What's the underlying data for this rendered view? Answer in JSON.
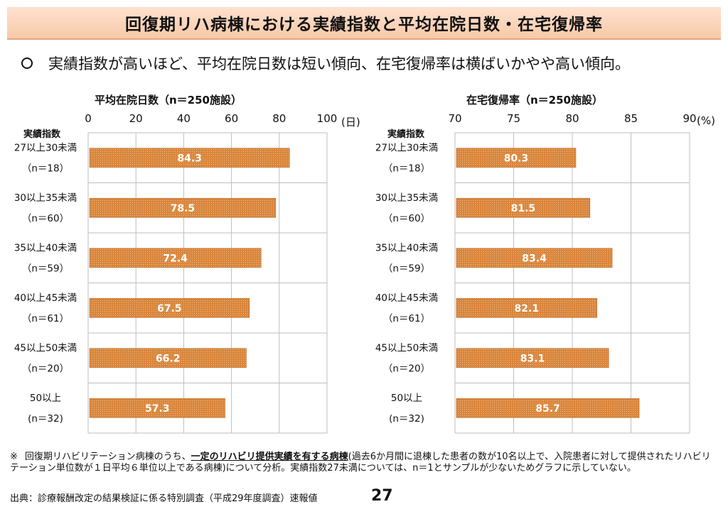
{
  "header": {
    "title": "回復期リハ病棟における実績指数と平均在院日数・在宅復帰率",
    "lead": "実績指数が高いほど、平均在院日数は短い傾向、在宅復帰率は横ばいかやや高い傾向。"
  },
  "row_header": "実績指数",
  "colors": {
    "bar": "#d9853b",
    "bar_dot": "#f2c08c",
    "grid": "#bfbfbf"
  },
  "chart_data": [
    {
      "type": "bar",
      "orientation": "horizontal",
      "title": "平均在院日数（n＝250施設）",
      "unit": "(日)",
      "xlim": [
        0,
        100
      ],
      "ticks": [
        "0",
        "20",
        "40",
        "60",
        "80",
        "100"
      ],
      "tick_values": [
        0,
        20,
        40,
        60,
        80,
        100
      ],
      "categories": [
        {
          "label": "27以上30未満",
          "n": "（n＝18）"
        },
        {
          "label": "30以上35未満",
          "n": "（n＝60）"
        },
        {
          "label": "35以上40未満",
          "n": "（n＝59）"
        },
        {
          "label": "40以上45未満",
          "n": "（n＝61）"
        },
        {
          "label": "45以上50未満",
          "n": "（n＝20）"
        },
        {
          "label": "50以上",
          "n": "(n＝32)"
        }
      ],
      "values": [
        84.3,
        78.5,
        72.4,
        67.5,
        66.2,
        57.3
      ],
      "value_labels": [
        "84.3",
        "78.5",
        "72.4",
        "67.5",
        "66.2",
        "57.3"
      ]
    },
    {
      "type": "bar",
      "orientation": "horizontal",
      "title": "在宅復帰率（n＝250施設）",
      "unit": "(%)",
      "xlim": [
        70,
        90
      ],
      "ticks": [
        "70",
        "75",
        "80",
        "85",
        "90"
      ],
      "tick_values": [
        70,
        75,
        80,
        85,
        90
      ],
      "categories": [
        {
          "label": "27以上30未満",
          "n": "（n＝18）"
        },
        {
          "label": "30以上35未満",
          "n": "（n＝60）"
        },
        {
          "label": "35以上40未満",
          "n": "（n＝59）"
        },
        {
          "label": "40以上45未満",
          "n": "（n＝61）"
        },
        {
          "label": "45以上50未満",
          "n": "（n＝20）"
        },
        {
          "label": "50以上",
          "n": "(n＝32)"
        }
      ],
      "values": [
        80.3,
        81.5,
        83.4,
        82.1,
        83.1,
        85.7
      ],
      "value_labels": [
        "80.3",
        "81.5",
        "83.4",
        "82.1",
        "83.1",
        "85.7"
      ]
    }
  ],
  "footnote": {
    "mark": "※",
    "before": "回復期リハビリテーション病棟のうち、",
    "emphasis": "一定のリハビリ提供実績を有する病棟",
    "after": "(過去6か月間に退棟した患者の数が10名以上で、入院患者に対して提供されたリハビリテーション単位数が１日平均６単位以上である病棟)について分析。実績指数27未満については、n＝1とサンプルが少ないためグラフに示していない。"
  },
  "source": "出典：診療報酬改定の結果検証に係る特別調査（平成29年度調査）速報値",
  "page_number": "27"
}
